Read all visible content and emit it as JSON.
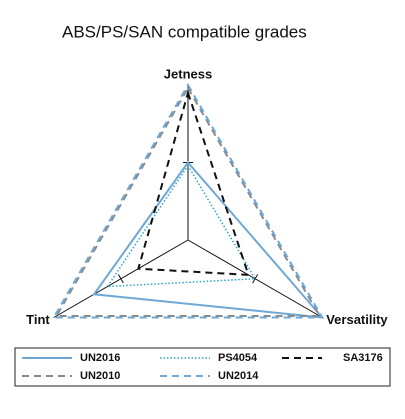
{
  "chart_data": {
    "type": "radar",
    "title": "ABS/PS/SAN compatible grades",
    "categories": [
      "Jetness",
      "Versatility",
      "Tint"
    ],
    "rlim": [
      0,
      10
    ],
    "rticks": [
      5
    ],
    "series": [
      {
        "name": "UN2016",
        "color": "#6fa8d6",
        "dash": "solid",
        "values": [
          5,
          10,
          7
        ]
      },
      {
        "name": "UN2010",
        "color": "#8a8a8a",
        "dash": "dashed",
        "values": [
          9.8,
          9.8,
          9.8
        ]
      },
      {
        "name": "PS4054",
        "color": "#2aa6c8",
        "dash": "dotted",
        "values": [
          4.8,
          5,
          6
        ]
      },
      {
        "name": "UN2014",
        "color": "#6fa8d6",
        "dash": "dashed",
        "values": [
          10,
          10,
          10
        ]
      },
      {
        "name": "SA3176",
        "color": "#111111",
        "dash": "dashed",
        "values": [
          9.5,
          4.5,
          3.7
        ]
      }
    ]
  }
}
